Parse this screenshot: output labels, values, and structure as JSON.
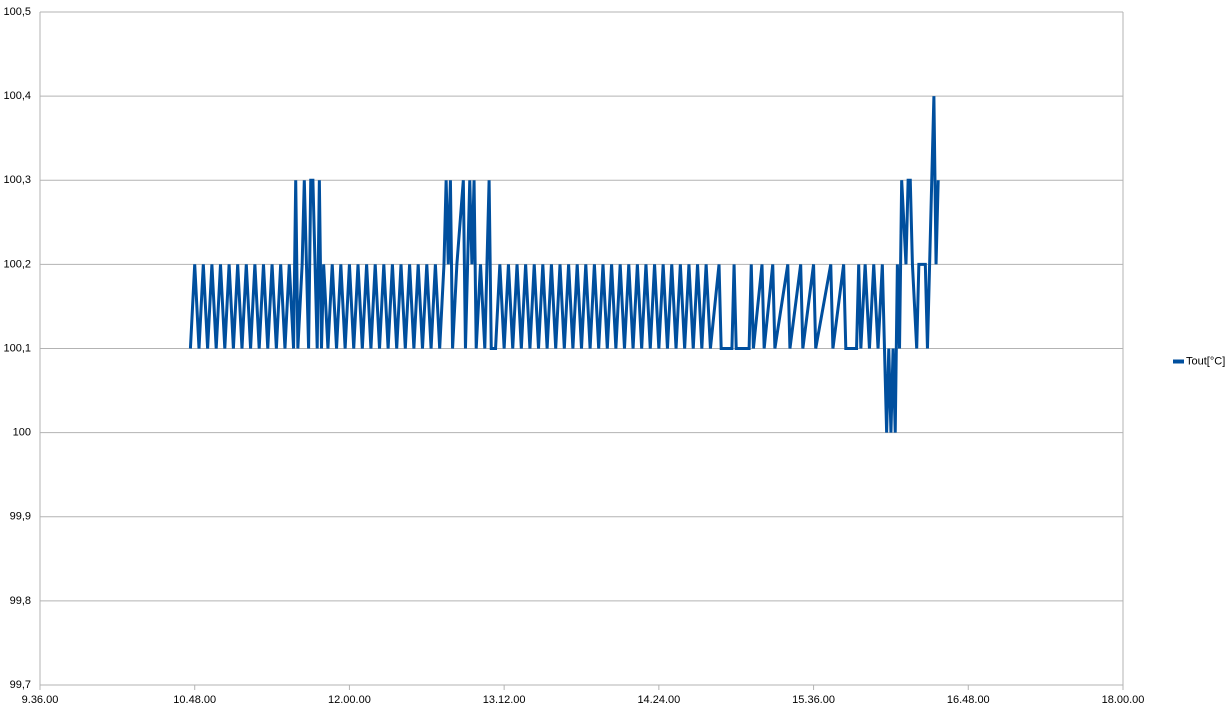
{
  "chart_data": {
    "type": "line",
    "x": [
      "10.46.00",
      "10.48.00",
      "10.50.00",
      "10.52.00",
      "10.54.00",
      "10.56.00",
      "10.58.00",
      "11.00.00",
      "11.02.00",
      "11.04.00",
      "11.06.00",
      "11.08.00",
      "11.10.00",
      "11.12.00",
      "11.14.00",
      "11.16.00",
      "11.18.00",
      "11.20.00",
      "11.22.00",
      "11.24.00",
      "11.26.00",
      "11.28.00",
      "11.30.00",
      "11.32.00",
      "11.34.00",
      "11.35.00",
      "11.36.00",
      "11.38.00",
      "11.39.00",
      "11.40.00",
      "11.41.00",
      "11.42.00",
      "11.43.00",
      "11.44.00",
      "11.45.00",
      "11.46.00",
      "11.47.00",
      "11.48.00",
      "11.50.00",
      "11.52.00",
      "11.54.00",
      "11.56.00",
      "11.58.00",
      "12.00.00",
      "12.02.00",
      "12.04.00",
      "12.06.00",
      "12.08.00",
      "12.10.00",
      "12.12.00",
      "12.14.00",
      "12.16.00",
      "12.18.00",
      "12.20.00",
      "12.22.00",
      "12.24.00",
      "12.26.00",
      "12.28.00",
      "12.30.00",
      "12.32.00",
      "12.34.00",
      "12.36.00",
      "12.38.00",
      "12.40.00",
      "12.42.00",
      "12.44.00",
      "12.45.00",
      "12.46.00",
      "12.47.00",
      "12.48.00",
      "12.50.00",
      "12.53.00",
      "12.54.00",
      "12.56.00",
      "12.57.00",
      "12.58.00",
      "12.59.00",
      "13.01.00",
      "13.03.00",
      "13.05.00",
      "13.06.00",
      "13.08.00",
      "13.10.00",
      "13.12.00",
      "13.14.00",
      "13.16.00",
      "13.18.00",
      "13.20.00",
      "13.22.00",
      "13.24.00",
      "13.26.00",
      "13.28.00",
      "13.30.00",
      "13.32.00",
      "13.34.00",
      "13.36.00",
      "13.38.00",
      "13.40.00",
      "13.42.00",
      "13.44.00",
      "13.46.00",
      "13.48.00",
      "13.50.00",
      "13.52.00",
      "13.54.00",
      "13.56.00",
      "13.58.00",
      "14.00.00",
      "14.02.00",
      "14.04.00",
      "14.06.00",
      "14.08.00",
      "14.10.00",
      "14.12.00",
      "14.14.00",
      "14.16.00",
      "14.18.00",
      "14.20.00",
      "14.22.00",
      "14.24.00",
      "14.26.00",
      "14.28.00",
      "14.30.00",
      "14.32.00",
      "14.34.00",
      "14.36.00",
      "14.38.00",
      "14.40.00",
      "14.42.00",
      "14.44.00",
      "14.46.00",
      "14.48.00",
      "14.52.00",
      "14.53.00",
      "14.58.00",
      "14.59.00",
      "15.00.00",
      "15.06.00",
      "15.07.00",
      "15.08.00",
      "15.12.00",
      "15.13.00",
      "15.17.00",
      "15.18.00",
      "15.24.00",
      "15.25.00",
      "15.30.00",
      "15.31.00",
      "15.36.00",
      "15.37.00",
      "15.44.00",
      "15.45.00",
      "15.50.00",
      "15.51.00",
      "15.56.00",
      "15.57.00",
      "15.58.00",
      "16.00.00",
      "16.02.00",
      "16.04.00",
      "16.06.00",
      "16.08.00",
      "16.09.00",
      "16.10.00",
      "16.11.00",
      "16.12.00",
      "16.13.00",
      "16.14.00",
      "16.15.00",
      "16.16.00",
      "16.17.00",
      "16.19.00",
      "16.20.00",
      "16.21.00",
      "16.22.00",
      "16.24.00",
      "16.25.00",
      "16.28.00",
      "16.29.00",
      "16.30.00",
      "16.32.00",
      "16.33.00",
      "16.34.00"
    ],
    "series": [
      {
        "name": "Tout[°C]",
        "color": "#004f9e",
        "values": [
          100.1,
          100.2,
          100.1,
          100.2,
          100.1,
          100.2,
          100.1,
          100.2,
          100.1,
          100.2,
          100.1,
          100.2,
          100.1,
          100.2,
          100.1,
          100.2,
          100.1,
          100.2,
          100.1,
          100.2,
          100.1,
          100.2,
          100.1,
          100.2,
          100.1,
          100.3,
          100.1,
          100.2,
          100.3,
          100.2,
          100.1,
          100.3,
          100.3,
          100.2,
          100.1,
          100.3,
          100.1,
          100.2,
          100.1,
          100.2,
          100.1,
          100.2,
          100.1,
          100.2,
          100.1,
          100.2,
          100.1,
          100.2,
          100.1,
          100.2,
          100.1,
          100.2,
          100.1,
          100.2,
          100.1,
          100.2,
          100.1,
          100.2,
          100.1,
          100.2,
          100.1,
          100.2,
          100.1,
          100.2,
          100.1,
          100.2,
          100.3,
          100.2,
          100.3,
          100.1,
          100.2,
          100.3,
          100.1,
          100.3,
          100.2,
          100.3,
          100.1,
          100.2,
          100.1,
          100.3,
          100.1,
          100.1,
          100.2,
          100.1,
          100.2,
          100.1,
          100.2,
          100.1,
          100.2,
          100.1,
          100.2,
          100.1,
          100.2,
          100.1,
          100.2,
          100.1,
          100.2,
          100.1,
          100.2,
          100.1,
          100.2,
          100.1,
          100.2,
          100.1,
          100.2,
          100.1,
          100.2,
          100.1,
          100.2,
          100.1,
          100.2,
          100.1,
          100.2,
          100.1,
          100.2,
          100.1,
          100.2,
          100.1,
          100.2,
          100.1,
          100.2,
          100.1,
          100.2,
          100.1,
          100.2,
          100.1,
          100.2,
          100.1,
          100.2,
          100.1,
          100.2,
          100.1,
          100.2,
          100.1,
          100.1,
          100.2,
          100.1,
          100.1,
          100.2,
          100.1,
          100.2,
          100.1,
          100.2,
          100.1,
          100.2,
          100.1,
          100.2,
          100.1,
          100.2,
          100.1,
          100.2,
          100.1,
          100.2,
          100.1,
          100.1,
          100.2,
          100.1,
          100.2,
          100.1,
          100.2,
          100.1,
          100.2,
          100.1,
          100.0,
          100.1,
          100.0,
          100.1,
          100.0,
          100.2,
          100.1,
          100.3,
          100.2,
          100.3,
          100.3,
          100.2,
          100.1,
          100.2,
          100.2,
          100.1,
          100.2,
          100.4,
          100.2,
          100.3
        ]
      }
    ],
    "xlim": [
      "9.36.00",
      "18.00.00"
    ],
    "xticks": [
      "9.36.00",
      "10.48.00",
      "12.00.00",
      "13.12.00",
      "14.24.00",
      "15.36.00",
      "16.48.00",
      "18.00.00"
    ],
    "ylim": [
      99.7,
      100.5
    ],
    "yticks": [
      {
        "value": 99.7,
        "label": "99,7"
      },
      {
        "value": 99.8,
        "label": "99,8"
      },
      {
        "value": 99.9,
        "label": "99,9"
      },
      100,
      {
        "value": 100.1,
        "label": "100,1"
      },
      {
        "value": 100.2,
        "label": "100,2"
      },
      {
        "value": 100.3,
        "label": "100,3"
      },
      {
        "value": 100.4,
        "label": "100,4"
      },
      {
        "value": 100.5,
        "label": "100,5"
      }
    ],
    "grid": true,
    "legend": "right"
  }
}
